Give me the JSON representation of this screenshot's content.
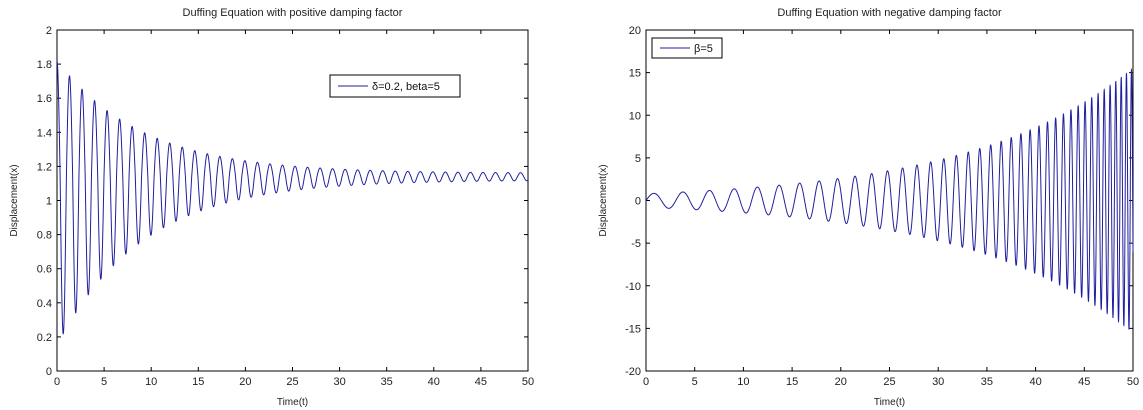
{
  "colors": {
    "trace": "#1f1f9e",
    "trace_fill": "#5a5ab8",
    "axes": "#000000",
    "background": "#ffffff"
  },
  "chart_data": [
    {
      "type": "line",
      "title": "Duffing Equation with positive damping factor",
      "xlabel": "Time(t)",
      "ylabel": "Displacement(x)",
      "xlim": [
        0,
        50
      ],
      "ylim": [
        0,
        2
      ],
      "xticks": [
        "0",
        "5",
        "10",
        "15",
        "20",
        "25",
        "30",
        "35",
        "40",
        "45",
        "50"
      ],
      "yticks": [
        "0",
        "0.2",
        "0.4",
        "0.6",
        "0.8",
        "1",
        "1.2",
        "1.4",
        "1.6",
        "1.8",
        "2"
      ],
      "grid": false,
      "legend_position": "top-right",
      "series": [
        {
          "name": "δ=0.2, beta=5",
          "kind": "decaying_oscillation",
          "center": 1.14,
          "initial_max": 1.82,
          "initial_min": 0.15,
          "final_amplitude": 0.02,
          "decay_per_time": 0.11,
          "period": 1.33,
          "x_end": 50
        }
      ]
    },
    {
      "type": "line",
      "title": "Duffing Equation with negative damping factor",
      "xlabel": "Time(t)",
      "ylabel": "Displacement(x)",
      "xlim": [
        0,
        50
      ],
      "ylim": [
        -20,
        20
      ],
      "xticks": [
        "0",
        "5",
        "10",
        "15",
        "20",
        "25",
        "30",
        "35",
        "40",
        "45",
        "50"
      ],
      "yticks": [
        "-20",
        "-15",
        "-10",
        "-5",
        "0",
        "5",
        "10",
        "15",
        "20"
      ],
      "grid": false,
      "legend_position": "top-left",
      "series": [
        {
          "name": "β=5",
          "kind": "growing_oscillation",
          "center": 0,
          "initial_amplitude": 0.8,
          "final_amplitude": 15.5,
          "period_start": 3.3,
          "period_end": 0.5,
          "x_end": 50
        }
      ]
    }
  ]
}
